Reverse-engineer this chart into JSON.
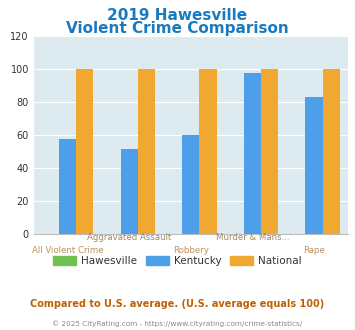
{
  "title_line1": "2019 Hawesville",
  "title_line2": "Violent Crime Comparison",
  "categories": [
    "All Violent Crime",
    "Aggravated Assault",
    "Robbery",
    "Murder & Mans...",
    "Rape"
  ],
  "series": {
    "Hawesville": [
      0,
      0,
      0,
      0,
      0
    ],
    "Kentucky": [
      58,
      52,
      60,
      98,
      83
    ],
    "National": [
      100,
      100,
      100,
      100,
      100
    ]
  },
  "colors": {
    "Hawesville": "#72c054",
    "Kentucky": "#4d9fea",
    "National": "#f0a830"
  },
  "ylim": [
    0,
    120
  ],
  "yticks": [
    0,
    20,
    40,
    60,
    80,
    100,
    120
  ],
  "plot_bg": "#ddeaf0",
  "title_color": "#1a7abf",
  "xlabel_top_color": "#a08860",
  "xlabel_bot_color": "#c09060",
  "legend_text_color": "#333333",
  "footer_text": "Compared to U.S. average. (U.S. average equals 100)",
  "copyright_text": "© 2025 CityRating.com - https://www.cityrating.com/crime-statistics/",
  "footer_color": "#c06000",
  "copyright_color": "#888888",
  "label_top": [
    "",
    "Aggravated Assault",
    "",
    "Murder & Mans...",
    ""
  ],
  "label_bot": [
    "All Violent Crime",
    "",
    "Robbery",
    "",
    "Rape"
  ]
}
